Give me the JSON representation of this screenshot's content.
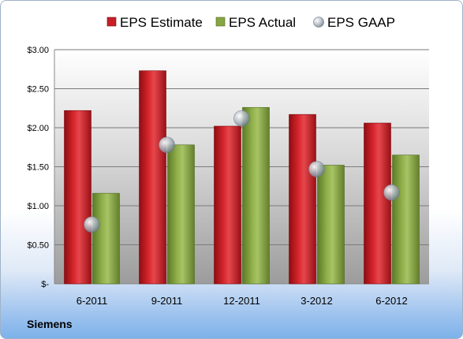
{
  "footer": {
    "company": "Siemens"
  },
  "chart_data": {
    "type": "bar",
    "categories": [
      "6-2011",
      "9-2011",
      "12-2011",
      "3-2012",
      "6-2012"
    ],
    "series": [
      {
        "name": "EPS Estimate",
        "kind": "bar",
        "color": "#c0151b",
        "values": [
          2.22,
          2.73,
          2.02,
          2.17,
          2.06
        ]
      },
      {
        "name": "EPS Actual",
        "kind": "bar",
        "color": "#7f9e3c",
        "values": [
          1.16,
          1.78,
          2.26,
          1.52,
          1.65
        ]
      },
      {
        "name": "EPS GAAP",
        "kind": "bubble",
        "color": "#9aa6b2",
        "values": [
          0.76,
          1.78,
          2.12,
          1.47,
          1.17
        ]
      }
    ],
    "ylim": [
      0,
      3.0
    ],
    "ytick_values": [
      0,
      0.5,
      1.0,
      1.5,
      2.0,
      2.5,
      3.0
    ],
    "ytick_labels": [
      "$-",
      "$0.50",
      "$1.00",
      "$1.50",
      "$2.00",
      "$2.50",
      "$3.00"
    ],
    "grid": true,
    "legend_position": "top"
  }
}
